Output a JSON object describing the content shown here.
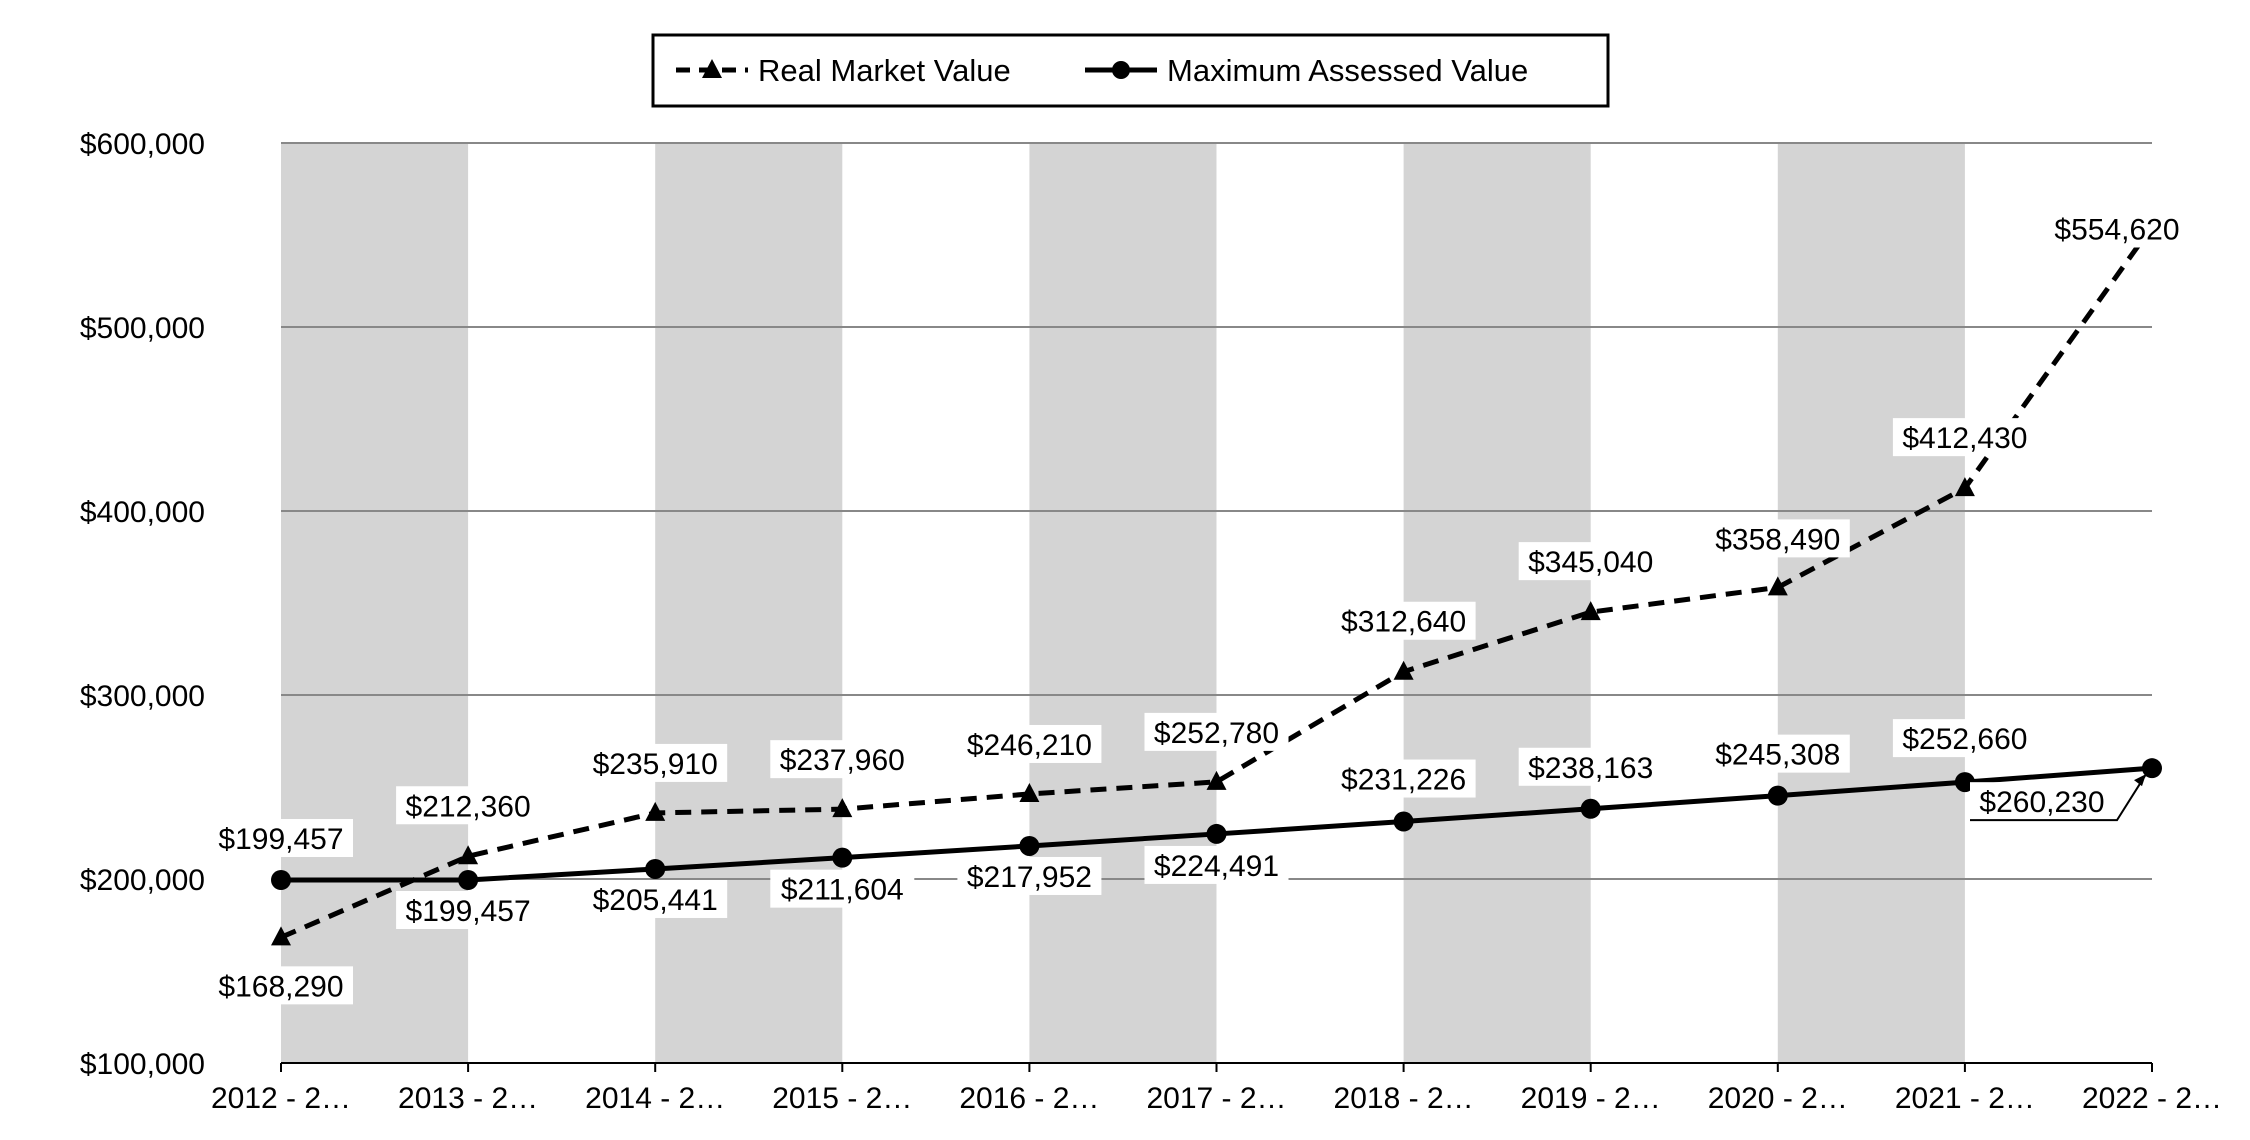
{
  "chart_data": {
    "type": "line",
    "title": "",
    "xlabel": "",
    "ylabel": "",
    "ylim": [
      100000,
      600000
    ],
    "yticks": [
      100000,
      200000,
      300000,
      400000,
      500000,
      600000
    ],
    "ytick_labels": [
      "$100,000",
      "$200,000",
      "$300,000",
      "$400,000",
      "$500,000",
      "$600,000"
    ],
    "categories": [
      "2012 - 2…",
      "2013 - 2…",
      "2014 - 2…",
      "2015 - 2…",
      "2016 - 2…",
      "2017 - 2…",
      "2018 - 2…",
      "2019 - 2…",
      "2020 - 2…",
      "2021 - 2…",
      "2022 - 2…"
    ],
    "grid": true,
    "legend": "top-center",
    "alternating_band_color": "#d4d4d4",
    "series": [
      {
        "name": "Real Market Value",
        "style": "dashed",
        "marker": "triangle",
        "color": "#000000",
        "values": [
          168290,
          212360,
          235910,
          237960,
          246210,
          252780,
          312640,
          345040,
          358490,
          412430,
          554620
        ],
        "labels": [
          "$168,290",
          "$212,360",
          "$235,910",
          "$237,960",
          "$246,210",
          "$252,780",
          "$312,640",
          "$345,040",
          "$358,490",
          "$412,430",
          "$554,620"
        ]
      },
      {
        "name": "Maximum Assessed Value",
        "style": "solid",
        "marker": "circle",
        "color": "#000000",
        "values": [
          199457,
          199457,
          205441,
          211604,
          217952,
          224491,
          231226,
          238163,
          245308,
          252660,
          260230
        ],
        "labels": [
          "$199,457",
          "$199,457",
          "$205,441",
          "$211,604",
          "$217,952",
          "$224,491",
          "$231,226",
          "$238,163",
          "$245,308",
          "$252,660",
          "$260,230"
        ]
      }
    ]
  }
}
